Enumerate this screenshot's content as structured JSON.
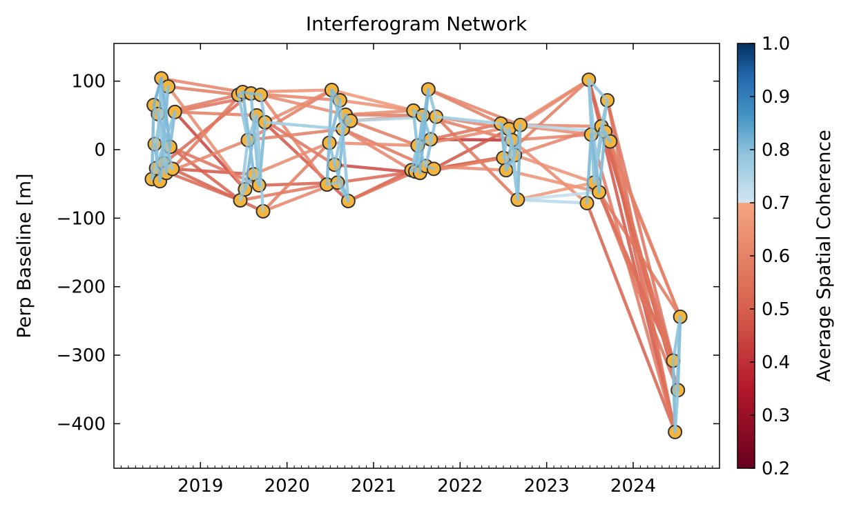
{
  "chart_data": {
    "type": "scatter",
    "title": "Interferogram Network",
    "ylabel": "Perp Baseline [m]",
    "xlabel": "",
    "xlim": [
      "2018-01-01",
      "2024-12-31"
    ],
    "ylim": [
      -465,
      155
    ],
    "x_ticks": [
      "2019",
      "2020",
      "2021",
      "2022",
      "2023",
      "2024"
    ],
    "y_ticks": [
      100,
      0,
      -100,
      -200,
      -300,
      -400
    ],
    "y_tick_labels": [
      "100",
      "0",
      "−100",
      "−200",
      "−300",
      "−400"
    ],
    "colorbar": {
      "label": "Average Spatial Coherence",
      "range": [
        0.2,
        1.0
      ],
      "colormap": "RdBu",
      "ticks": [
        "0.2",
        "0.3",
        "0.4",
        "0.5",
        "0.6",
        "0.7",
        "0.8",
        "0.9",
        "1.0"
      ]
    },
    "marker_color": "#f5b43c",
    "marker_edge_color": "#333333",
    "acquisitions": [
      {
        "date": "2018-06-10",
        "bperp": -43
      },
      {
        "date": "2018-06-18",
        "bperp": 65
      },
      {
        "date": "2018-06-22",
        "bperp": 8
      },
      {
        "date": "2018-06-28",
        "bperp": -27
      },
      {
        "date": "2018-07-06",
        "bperp": 52
      },
      {
        "date": "2018-07-14",
        "bperp": -46
      },
      {
        "date": "2018-07-20",
        "bperp": 104
      },
      {
        "date": "2018-07-30",
        "bperp": -20
      },
      {
        "date": "2018-08-10",
        "bperp": -34
      },
      {
        "date": "2018-08-18",
        "bperp": 92
      },
      {
        "date": "2018-08-26",
        "bperp": 4
      },
      {
        "date": "2018-09-05",
        "bperp": -28
      },
      {
        "date": "2018-09-15",
        "bperp": 55
      },
      {
        "date": "2019-06-10",
        "bperp": 80
      },
      {
        "date": "2019-06-18",
        "bperp": -74
      },
      {
        "date": "2019-06-28",
        "bperp": 84
      },
      {
        "date": "2019-07-08",
        "bperp": -58
      },
      {
        "date": "2019-07-20",
        "bperp": 14
      },
      {
        "date": "2019-08-02",
        "bperp": 82
      },
      {
        "date": "2019-08-14",
        "bperp": -36
      },
      {
        "date": "2019-08-26",
        "bperp": 50
      },
      {
        "date": "2019-09-05",
        "bperp": -52
      },
      {
        "date": "2019-09-12",
        "bperp": 80
      },
      {
        "date": "2019-09-22",
        "bperp": -90
      },
      {
        "date": "2019-09-30",
        "bperp": 40
      },
      {
        "date": "2020-06-18",
        "bperp": -51
      },
      {
        "date": "2020-06-28",
        "bperp": 10
      },
      {
        "date": "2020-07-08",
        "bperp": 87
      },
      {
        "date": "2020-07-20",
        "bperp": -22
      },
      {
        "date": "2020-08-02",
        "bperp": -48
      },
      {
        "date": "2020-08-12",
        "bperp": 72
      },
      {
        "date": "2020-08-24",
        "bperp": 30
      },
      {
        "date": "2020-09-05",
        "bperp": 51
      },
      {
        "date": "2020-09-16",
        "bperp": -75
      },
      {
        "date": "2020-09-26",
        "bperp": 42
      },
      {
        "date": "2021-06-10",
        "bperp": -30
      },
      {
        "date": "2021-06-18",
        "bperp": 57
      },
      {
        "date": "2021-06-26",
        "bperp": -32
      },
      {
        "date": "2021-07-06",
        "bperp": 6
      },
      {
        "date": "2021-07-16",
        "bperp": -34
      },
      {
        "date": "2021-07-28",
        "bperp": 50
      },
      {
        "date": "2021-08-10",
        "bperp": -24
      },
      {
        "date": "2021-08-20",
        "bperp": 88
      },
      {
        "date": "2021-08-30",
        "bperp": 15
      },
      {
        "date": "2021-09-12",
        "bperp": -28
      },
      {
        "date": "2021-09-22",
        "bperp": 48
      },
      {
        "date": "2022-06-22",
        "bperp": 38
      },
      {
        "date": "2022-07-02",
        "bperp": -12
      },
      {
        "date": "2022-07-14",
        "bperp": -30
      },
      {
        "date": "2022-07-26",
        "bperp": 30
      },
      {
        "date": "2022-08-08",
        "bperp": 14
      },
      {
        "date": "2022-08-20",
        "bperp": -8
      },
      {
        "date": "2022-09-01",
        "bperp": -73
      },
      {
        "date": "2022-09-12",
        "bperp": 36
      },
      {
        "date": "2023-06-20",
        "bperp": -78
      },
      {
        "date": "2023-06-28",
        "bperp": 102
      },
      {
        "date": "2023-07-08",
        "bperp": 22
      },
      {
        "date": "2023-07-20",
        "bperp": -48
      },
      {
        "date": "2023-08-10",
        "bperp": -62
      },
      {
        "date": "2023-08-20",
        "bperp": 34
      },
      {
        "date": "2023-09-05",
        "bperp": 26
      },
      {
        "date": "2023-09-14",
        "bperp": 72
      },
      {
        "date": "2023-09-26",
        "bperp": 12
      },
      {
        "date": "2024-06-18",
        "bperp": -308
      },
      {
        "date": "2024-06-26",
        "bperp": -412
      },
      {
        "date": "2024-07-08",
        "bperp": -351
      },
      {
        "date": "2024-07-18",
        "bperp": -244
      }
    ],
    "interferograms": [
      [
        0,
        1,
        0.8
      ],
      [
        0,
        3,
        0.78
      ],
      [
        1,
        6,
        0.82
      ],
      [
        2,
        5,
        0.8
      ],
      [
        3,
        6,
        0.79
      ],
      [
        4,
        8,
        0.78
      ],
      [
        5,
        9,
        0.8
      ],
      [
        6,
        10,
        0.81
      ],
      [
        7,
        11,
        0.78
      ],
      [
        8,
        12,
        0.8
      ],
      [
        6,
        8,
        0.79
      ],
      [
        2,
        9,
        0.77
      ],
      [
        1,
        10,
        0.8
      ],
      [
        4,
        11,
        0.78
      ],
      [
        3,
        12,
        0.79
      ],
      [
        5,
        7,
        0.8
      ],
      [
        9,
        13,
        0.58
      ],
      [
        10,
        14,
        0.5
      ],
      [
        11,
        15,
        0.56
      ],
      [
        12,
        16,
        0.44
      ],
      [
        8,
        17,
        0.6
      ],
      [
        7,
        18,
        0.52
      ],
      [
        11,
        19,
        0.48
      ],
      [
        12,
        20,
        0.58
      ],
      [
        10,
        21,
        0.55
      ],
      [
        9,
        16,
        0.62
      ],
      [
        4,
        13,
        0.57
      ],
      [
        6,
        15,
        0.6
      ],
      [
        3,
        14,
        0.52
      ],
      [
        12,
        22,
        0.55
      ],
      [
        11,
        23,
        0.5
      ],
      [
        13,
        15,
        0.8
      ],
      [
        14,
        16,
        0.78
      ],
      [
        15,
        18,
        0.81
      ],
      [
        16,
        19,
        0.79
      ],
      [
        17,
        20,
        0.78
      ],
      [
        18,
        22,
        0.8
      ],
      [
        19,
        21,
        0.79
      ],
      [
        20,
        23,
        0.77
      ],
      [
        21,
        24,
        0.8
      ],
      [
        13,
        17,
        0.78
      ],
      [
        15,
        19,
        0.8
      ],
      [
        18,
        21,
        0.79
      ],
      [
        22,
        24,
        0.78
      ],
      [
        14,
        17,
        0.77
      ],
      [
        16,
        20,
        0.8
      ],
      [
        22,
        25,
        0.6
      ],
      [
        23,
        26,
        0.58
      ],
      [
        24,
        27,
        0.62
      ],
      [
        20,
        28,
        0.55
      ],
      [
        21,
        29,
        0.5
      ],
      [
        19,
        26,
        0.62
      ],
      [
        18,
        30,
        0.6
      ],
      [
        17,
        27,
        0.58
      ],
      [
        24,
        31,
        0.76
      ],
      [
        23,
        29,
        0.6
      ],
      [
        22,
        32,
        0.62
      ],
      [
        15,
        27,
        0.64
      ],
      [
        14,
        25,
        0.56
      ],
      [
        20,
        33,
        0.48
      ],
      [
        17,
        31,
        0.58
      ],
      [
        25,
        27,
        0.8
      ],
      [
        26,
        28,
        0.79
      ],
      [
        27,
        30,
        0.81
      ],
      [
        28,
        31,
        0.78
      ],
      [
        29,
        32,
        0.8
      ],
      [
        30,
        33,
        0.78
      ],
      [
        31,
        34,
        0.8
      ],
      [
        25,
        29,
        0.79
      ],
      [
        26,
        30,
        0.8
      ],
      [
        27,
        31,
        0.78
      ],
      [
        28,
        33,
        0.8
      ],
      [
        32,
        34,
        0.79
      ],
      [
        29,
        33,
        0.78
      ],
      [
        31,
        35,
        0.6
      ],
      [
        32,
        36,
        0.62
      ],
      [
        33,
        37,
        0.55
      ],
      [
        34,
        38,
        0.58
      ],
      [
        30,
        36,
        0.64
      ],
      [
        29,
        37,
        0.52
      ],
      [
        28,
        39,
        0.45
      ],
      [
        34,
        40,
        0.6
      ],
      [
        31,
        41,
        0.56
      ],
      [
        33,
        35,
        0.5
      ],
      [
        32,
        40,
        0.58
      ],
      [
        27,
        36,
        0.66
      ],
      [
        26,
        38,
        0.62
      ],
      [
        34,
        45,
        0.74
      ],
      [
        35,
        37,
        0.8
      ],
      [
        36,
        39,
        0.79
      ],
      [
        37,
        40,
        0.8
      ],
      [
        38,
        41,
        0.78
      ],
      [
        39,
        42,
        0.81
      ],
      [
        40,
        43,
        0.79
      ],
      [
        41,
        44,
        0.8
      ],
      [
        42,
        45,
        0.78
      ],
      [
        35,
        38,
        0.79
      ],
      [
        36,
        40,
        0.8
      ],
      [
        38,
        43,
        0.78
      ],
      [
        41,
        45,
        0.79
      ],
      [
        37,
        42,
        0.8
      ],
      [
        43,
        46,
        0.55
      ],
      [
        44,
        47,
        0.45
      ],
      [
        45,
        49,
        0.6
      ],
      [
        42,
        46,
        0.58
      ],
      [
        41,
        48,
        0.62
      ],
      [
        43,
        50,
        0.4
      ],
      [
        44,
        51,
        0.5
      ],
      [
        45,
        52,
        0.56
      ],
      [
        39,
        47,
        0.6
      ],
      [
        40,
        50,
        0.58
      ],
      [
        38,
        53,
        0.62
      ],
      [
        45,
        46,
        0.76
      ],
      [
        42,
        53,
        0.6
      ],
      [
        44,
        49,
        0.48
      ],
      [
        46,
        48,
        0.8
      ],
      [
        47,
        49,
        0.78
      ],
      [
        48,
        50,
        0.79
      ],
      [
        49,
        51,
        0.8
      ],
      [
        50,
        52,
        0.78
      ],
      [
        51,
        53,
        0.8
      ],
      [
        46,
        50,
        0.79
      ],
      [
        47,
        51,
        0.78
      ],
      [
        52,
        53,
        0.8
      ],
      [
        49,
        52,
        0.78
      ],
      [
        48,
        51,
        0.8
      ],
      [
        49,
        55,
        0.62
      ],
      [
        50,
        56,
        0.6
      ],
      [
        51,
        57,
        0.64
      ],
      [
        52,
        58,
        0.72
      ],
      [
        53,
        59,
        0.6
      ],
      [
        53,
        55,
        0.62
      ],
      [
        47,
        55,
        0.58
      ],
      [
        46,
        56,
        0.62
      ],
      [
        53,
        60,
        0.74
      ],
      [
        52,
        57,
        0.66
      ],
      [
        48,
        58,
        0.64
      ],
      [
        51,
        59,
        0.6
      ],
      [
        50,
        54,
        0.62
      ],
      [
        52,
        54,
        0.74
      ],
      [
        54,
        56,
        0.8
      ],
      [
        55,
        57,
        0.79
      ],
      [
        56,
        58,
        0.81
      ],
      [
        57,
        59,
        0.78
      ],
      [
        58,
        60,
        0.8
      ],
      [
        59,
        61,
        0.79
      ],
      [
        60,
        62,
        0.8
      ],
      [
        55,
        58,
        0.78
      ],
      [
        56,
        60,
        0.8
      ],
      [
        57,
        61,
        0.79
      ],
      [
        59,
        62,
        0.8
      ],
      [
        55,
        61,
        0.78
      ],
      [
        61,
        63,
        0.55
      ],
      [
        62,
        64,
        0.52
      ],
      [
        60,
        65,
        0.5
      ],
      [
        58,
        63,
        0.55
      ],
      [
        55,
        64,
        0.48
      ],
      [
        57,
        63,
        0.53
      ],
      [
        56,
        64,
        0.57
      ],
      [
        58,
        65,
        0.55
      ],
      [
        59,
        63,
        0.52
      ],
      [
        54,
        64,
        0.5
      ],
      [
        61,
        64,
        0.55
      ],
      [
        62,
        65,
        0.56
      ],
      [
        60,
        66,
        0.58
      ],
      [
        62,
        66,
        0.6
      ],
      [
        58,
        66,
        0.56
      ],
      [
        55,
        65,
        0.52
      ],
      [
        63,
        64,
        0.8
      ],
      [
        64,
        65,
        0.78
      ],
      [
        65,
        66,
        0.8
      ],
      [
        63,
        66,
        0.79
      ],
      [
        64,
        66,
        0.78
      ]
    ]
  }
}
